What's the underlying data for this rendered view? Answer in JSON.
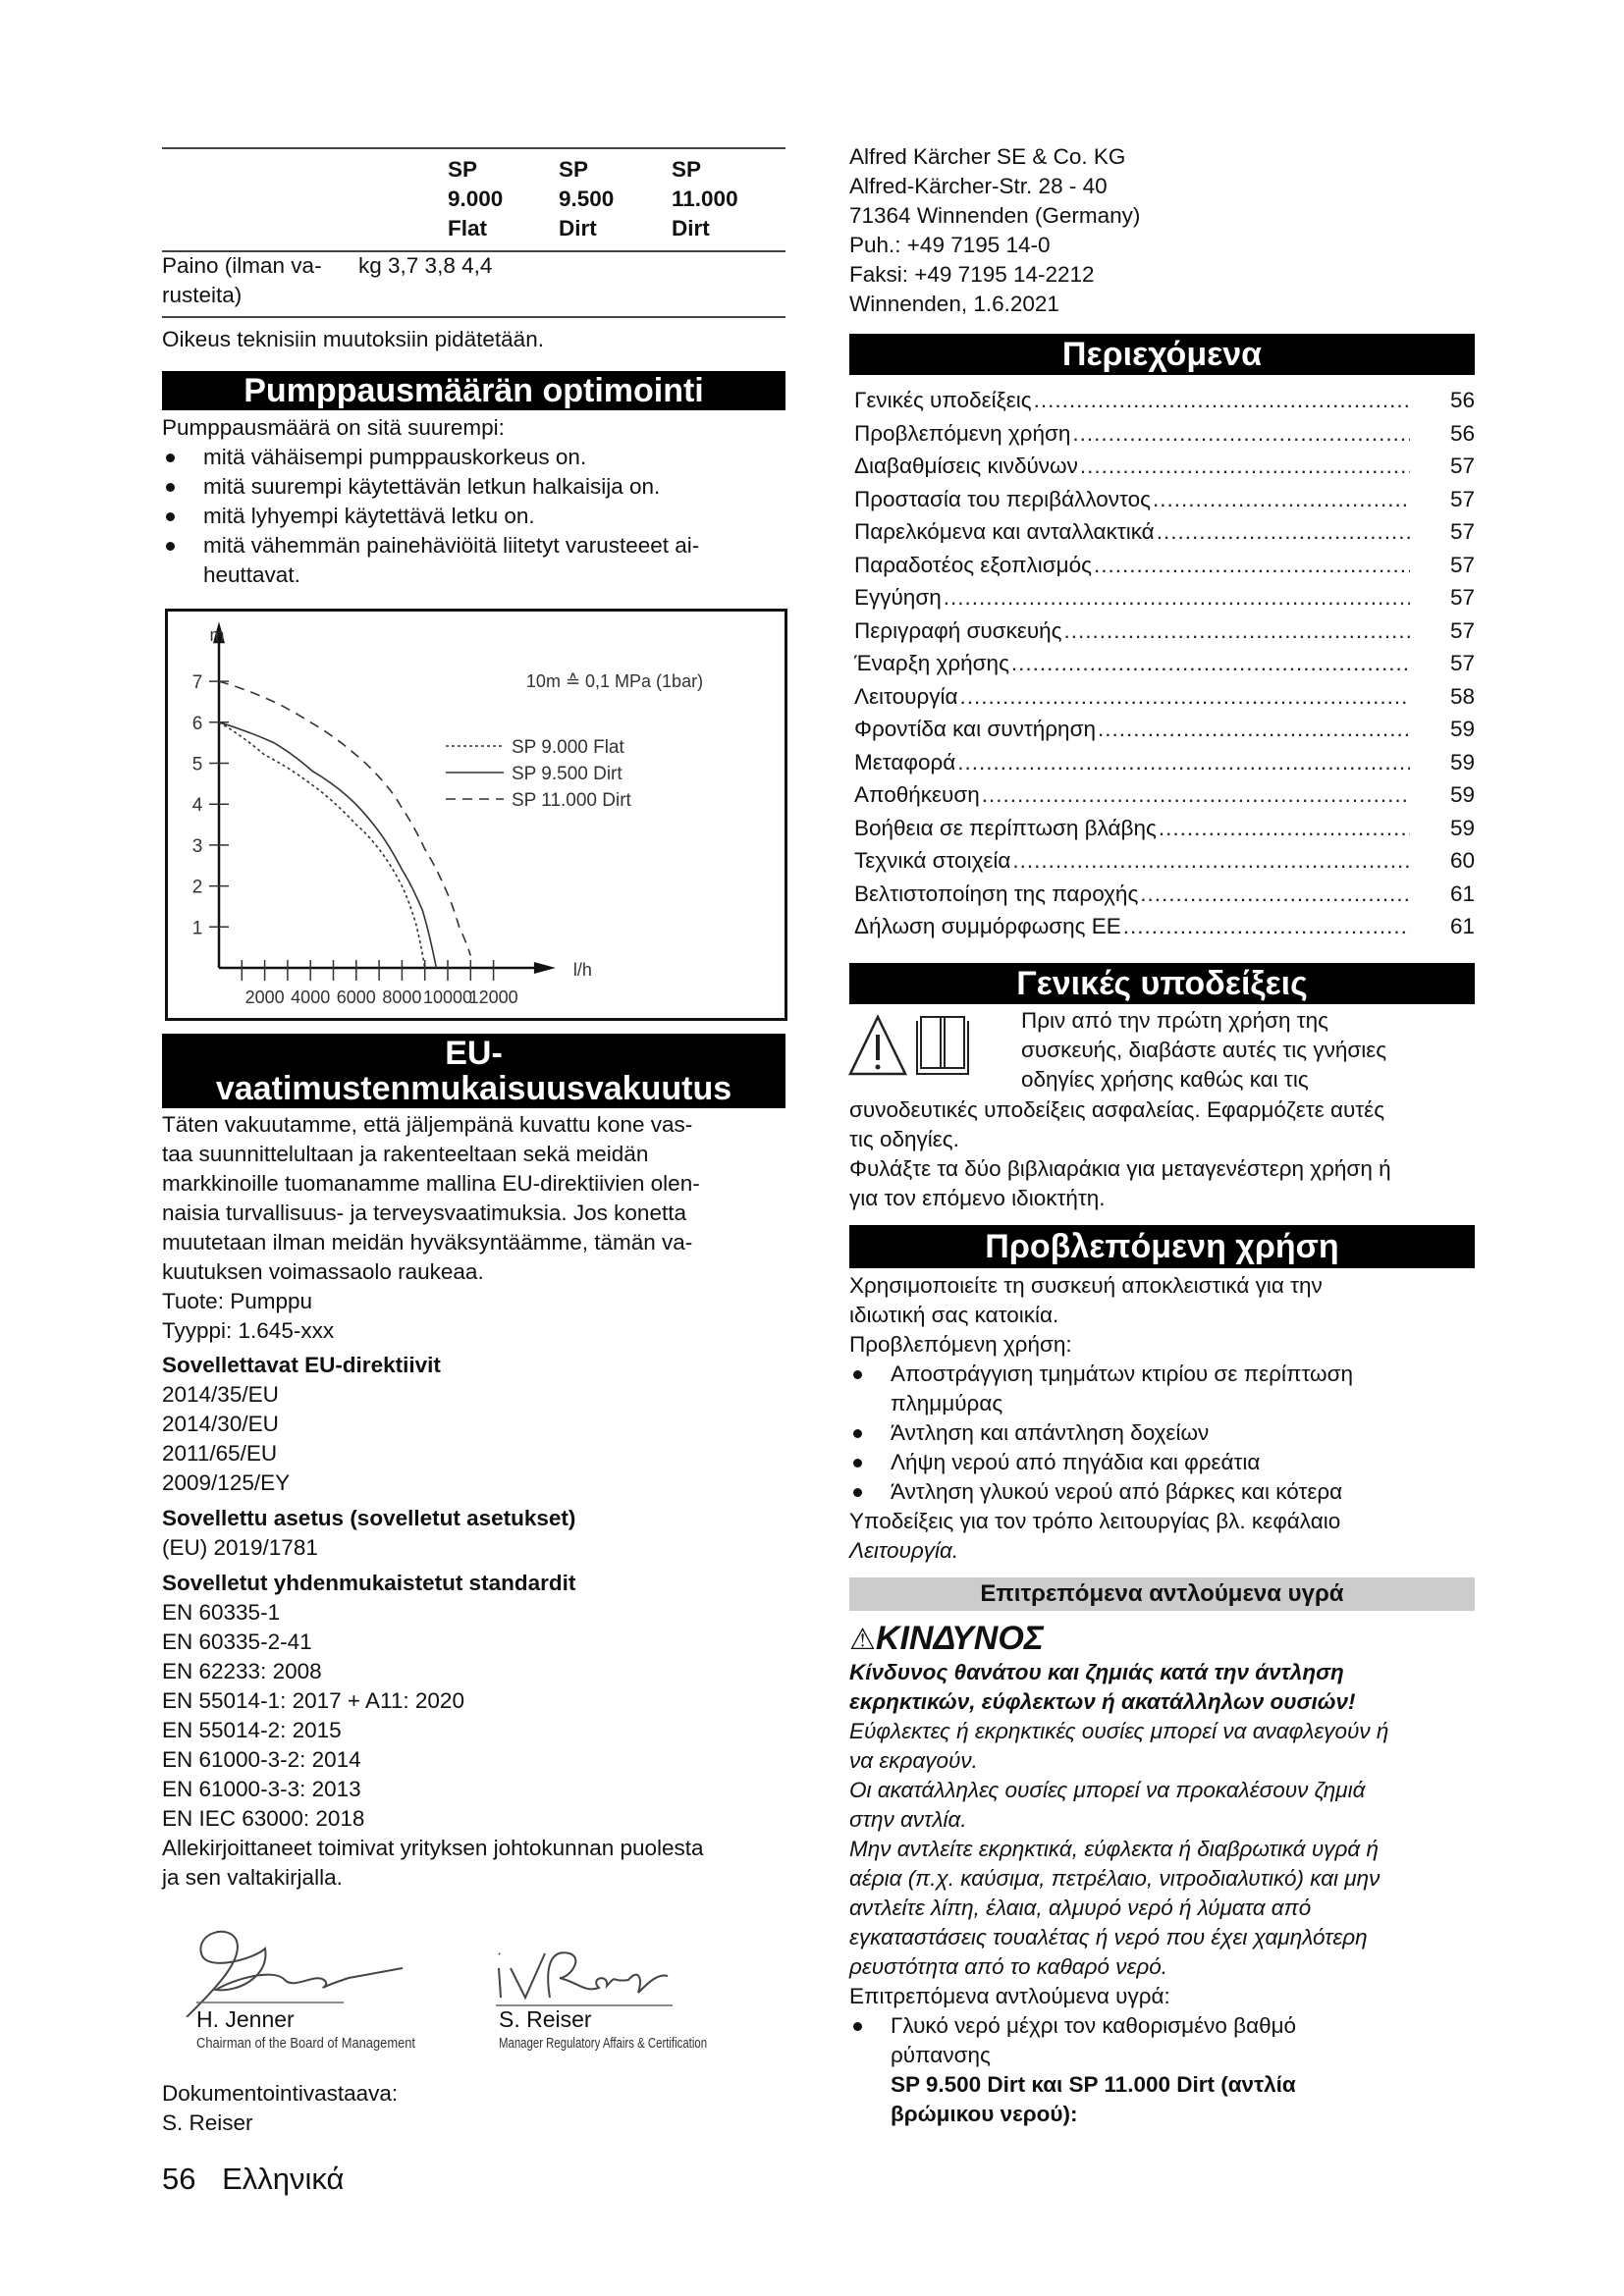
{
  "spec_table": {
    "headers": [
      [
        "SP",
        "9.000",
        "Flat"
      ],
      [
        "SP",
        "9.500",
        "Dirt"
      ],
      [
        "SP",
        "11.000",
        "Dirt"
      ]
    ],
    "row": {
      "label_lines": [
        "Paino (ilman va-",
        "rusteita)"
      ],
      "unit": "kg",
      "values": "3,7 3,8 4,4"
    },
    "note": "Oikeus teknisiin muutoksiin pidätetään."
  },
  "pump_section": {
    "title": "Pumppausmäärän optimointi",
    "intro": "Pumppausmäärä on sitä suurempi:",
    "bullets": [
      [
        "mitä vähäisempi pumppauskorkeus on."
      ],
      [
        "mitä suurempi käytettävän letkun halkaisija on."
      ],
      [
        "mitä lyhyempi käytettävä letku on."
      ],
      [
        "mitä vähemmän painehäviöitä liitetyt varusteeet ai-",
        "heuttavat."
      ]
    ]
  },
  "chart_data": {
    "type": "line",
    "title": "",
    "xlabel": "l/h",
    "ylabel": "m",
    "annotation": "10m ≙ 0,1 MPa (1bar)",
    "xlim": [
      0,
      13000
    ],
    "ylim": [
      0,
      7.5
    ],
    "x_ticks": [
      2000,
      4000,
      6000,
      8000,
      10000,
      12000
    ],
    "x_tick_labels": [
      "2000",
      "4000",
      "6000",
      "8000",
      "10000",
      "12000"
    ],
    "y_ticks": [
      1,
      2,
      3,
      4,
      5,
      6,
      7
    ],
    "y_tick_labels": [
      "1",
      "2",
      "3",
      "4",
      "5",
      "6",
      "7"
    ],
    "grid": false,
    "legend_position": "top-right",
    "series": [
      {
        "name": "SP 9.000 Flat",
        "style": "dotted",
        "x": [
          0,
          2000,
          4000,
          6000,
          7000,
          8000,
          8600,
          9000
        ],
        "y": [
          6.0,
          5.2,
          4.5,
          3.5,
          2.9,
          2.0,
          1.1,
          0
        ]
      },
      {
        "name": "SP 9.500 Dirt",
        "style": "solid",
        "x": [
          0,
          2400,
          4100,
          5600,
          6900,
          8000,
          8900,
          9500
        ],
        "y": [
          6.0,
          5.5,
          4.8,
          4.2,
          3.4,
          2.4,
          1.4,
          0
        ]
      },
      {
        "name": "SP 11.000 Dirt",
        "style": "dashed",
        "x": [
          0,
          2000,
          4000,
          6000,
          7400,
          8000,
          9000,
          10000,
          10500,
          11000
        ],
        "y": [
          7.0,
          6.6,
          6.0,
          5.2,
          4.4,
          3.9,
          2.9,
          1.8,
          1.0,
          0.3
        ]
      }
    ]
  },
  "eu_section": {
    "title_lines": [
      "EU-",
      "vaatimustenmukaisuusvakuutus"
    ],
    "body": [
      "Täten vakuutamme, että jäljempänä kuvattu kone vas-",
      "taa suunnittelultaan ja rakenteeltaan sekä meidän",
      "markkinoille tuomanamme mallina EU-direktiivien olen-",
      "naisia turvallisuus- ja terveysvaatimuksia. Jos konetta",
      "muutetaan ilman meidän hyväksyntäämme, tämän va-",
      "kuutuksen voimassaolo raukeaa.",
      "Tuote: Pumppu",
      "Tyyppi: 1.645-xxx"
    ],
    "directives_heading": "Sovellettavat EU-direktiivit",
    "directives": [
      "2014/35/EU",
      "2014/30/EU",
      "2011/65/EU",
      "2009/125/EY"
    ],
    "regulation_heading": "Sovellettu asetus (sovelletut asetukset)",
    "regulations": [
      "(EU) 2019/1781"
    ],
    "standards_heading": "Sovelletut yhdenmukaistetut standardit",
    "standards": [
      "EN 60335-1",
      "EN 60335-2-41",
      "EN 62233: 2008",
      "EN 55014-1: 2017 + A11: 2020",
      "EN 55014-2: 2015",
      "EN 61000-3-2: 2014",
      "EN 61000-3-3: 2013",
      "EN IEC 63000: 2018"
    ],
    "signing_note": [
      "Allekirjoittaneet toimivat yrityksen johtokunnan puolesta",
      "ja sen valtakirjalla."
    ],
    "signatories": [
      {
        "name": "H. Jenner",
        "role": "Chairman of the Board of Management"
      },
      {
        "name": "S. Reiser",
        "role": "Manager Regulatory Affairs & Certification"
      }
    ],
    "doc_responsible": [
      "Dokumentointivastaava:",
      "S. Reiser"
    ]
  },
  "address": [
    "Alfred Kärcher SE & Co. KG",
    "Alfred-Kärcher-Str. 28 - 40",
    "71364 Winnenden (Germany)",
    "Puh.: +49 7195 14-0",
    "Faksi: +49 7195 14-2212",
    "Winnenden, 1.6.2021"
  ],
  "toc": {
    "title": "Περιεχόμενα",
    "leader": "..............................................................................................................",
    "items": [
      {
        "label": "Γενικές υποδείξεις",
        "page": "56"
      },
      {
        "label": "Προβλεπόμενη χρήση",
        "page": "56"
      },
      {
        "label": "Διαβαθμίσεις κινδύνων",
        "page": "57"
      },
      {
        "label": "Προστασία του περιβάλλοντος",
        "page": "57"
      },
      {
        "label": "Παρελκόμενα και ανταλλακτικά",
        "page": "57"
      },
      {
        "label": "Παραδοτέος εξοπλισμός",
        "page": "57"
      },
      {
        "label": "Εγγύηση",
        "page": "57"
      },
      {
        "label": "Περιγραφή συσκευής",
        "page": "57"
      },
      {
        "label": "Έναρξη χρήσης",
        "page": "57"
      },
      {
        "label": "Λειτουργία",
        "page": "58"
      },
      {
        "label": "Φροντίδα και συντήρηση",
        "page": "59"
      },
      {
        "label": "Μεταφορά",
        "page": "59"
      },
      {
        "label": "Αποθήκευση",
        "page": "59"
      },
      {
        "label": "Βοήθεια σε περίπτωση βλάβης",
        "page": "59"
      },
      {
        "label": "Τεχνικά στοιχεία",
        "page": "60"
      },
      {
        "label": "Βελτιστοποίηση της παροχής",
        "page": "61"
      },
      {
        "label": "Δήλωση συμμόρφωσης ΕΕ",
        "page": "61"
      }
    ]
  },
  "general_notes": {
    "title": "Γενικές υποδείξεις",
    "icons": [
      "warning-triangle-icon",
      "manual-book-icon"
    ],
    "beside_icons": [
      "Πριν από την πρώτη χρήση της",
      "συσκευής, διαβάστε αυτές τις γνήσιες",
      "οδηγίες χρήσης καθώς και τις"
    ],
    "body": [
      "συνοδευτικές υποδείξεις ασφαλείας. Εφαρμόζετε αυτές",
      "τις οδηγίες.",
      "Φυλάξτε τα δύο βιβλιαράκια για μεταγενέστερη χρήση ή",
      "για τον επόμενο ιδιοκτήτη."
    ]
  },
  "intended_use": {
    "title": "Προβλεπόμενη χρήση",
    "intro": [
      "Χρησιμοποιείτε τη συσκευή αποκλειστικά για την",
      "ιδιωτική σας κατοικία.",
      "Προβλεπόμενη χρήση:"
    ],
    "bullets": [
      [
        "Αποστράγγιση τμημάτων κτιρίου σε περίπτωση",
        "πλημμύρας"
      ],
      [
        "Άντληση και απάντληση δοχείων"
      ],
      [
        "Λήψη νερού από πηγάδια και φρεάτια"
      ],
      [
        "Άντληση γλυκού νερού από βάρκες και κότερα"
      ]
    ],
    "note": "Υποδείξεις για τον τρόπο λειτουργίας βλ. κεφάλαιο",
    "note_ref": "Λειτουργία."
  },
  "liquids": {
    "title": "Επιτρεπόμενα αντλούμενα υγρά",
    "danger_label": "ΚΙΝΔΥΝΟΣ",
    "danger_bold": [
      "Κίνδυνος θανάτου και ζημιάς κατά την άντληση",
      "εκρηκτικών, εύφλεκτων ή ακατάλληλων ουσιών!"
    ],
    "danger_text": [
      "Εύφλεκτες ή εκρηκτικές ουσίες μπορεί να αναφλεγούν ή",
      "να εκραγούν.",
      "Οι ακατάλληλες ουσίες μπορεί να προκαλέσουν ζημιά",
      "στην αντλία.",
      "Μην αντλείτε εκρηκτικά, εύφλεκτα ή διαβρωτικά υγρά ή",
      "αέρια (π.χ. καύσιμα, πετρέλαιο, νιτροδιαλυτικό) και μην",
      "αντλείτε λίπη, έλαια, αλμυρό νερό ή λύματα από",
      "εγκαταστάσεις τουαλέτας ή νερό που έχει χαμηλότερη",
      "ρευστότητα από το καθαρό νερό."
    ],
    "allowed_intro": "Επιτρεπόμενα αντλούμενα υγρά:",
    "bullet": [
      "Γλυκό νερό μέχρι τον καθορισμένο βαθμό",
      "ρύπανσης"
    ],
    "bold_cont": [
      "SP 9.500 Dirt και SP 11.000 Dirt (αντλία",
      "βρώμικου νερού):"
    ]
  },
  "footer": {
    "page_number": "56",
    "language": "Ελληνικά"
  },
  "colors": {
    "heading_bg": "#000000",
    "subheading_bg": "#cccccc",
    "text": "#111111"
  }
}
